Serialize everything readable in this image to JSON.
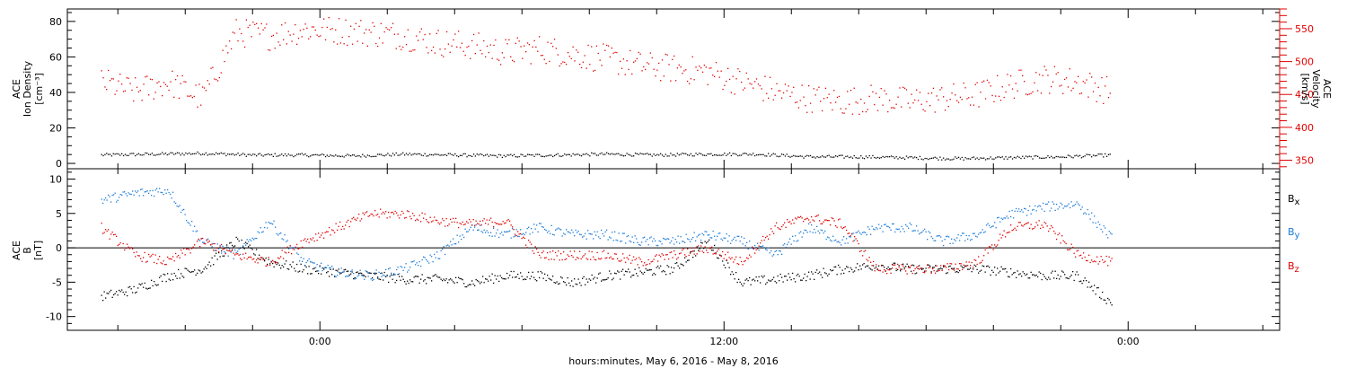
{
  "chart_data": [
    {
      "type": "scatter",
      "panel": "top",
      "left_axis": {
        "label_lines": [
          "ACE",
          "Ion Density",
          "[cm⁻³]"
        ],
        "range": [
          -3,
          87
        ],
        "ticks": [
          0,
          20,
          40,
          60,
          80
        ]
      },
      "right_axis": {
        "label_lines": [
          "ACE",
          "Velocity",
          "[km/s]"
        ],
        "range": [
          337,
          580
        ],
        "ticks": [
          350,
          400,
          450,
          500,
          550
        ],
        "color": "#e00000"
      },
      "series": [
        {
          "axis": "left",
          "color": "#000000",
          "x_hours": [
            -8.5,
            -7,
            -5.5,
            -4,
            -2.5,
            -1,
            0.5,
            2,
            3.5,
            5,
            6.5,
            8,
            9.5,
            11,
            12.5,
            14,
            15.5,
            17,
            18.5,
            20,
            21.5
          ],
          "y": [
            5,
            5.5,
            6,
            5,
            5,
            4.5,
            5.5,
            5,
            4.5,
            5,
            5.5,
            5,
            5.5,
            5.5,
            4,
            4,
            3.5,
            3,
            3.5,
            4,
            5
          ]
        },
        {
          "axis": "right",
          "color": "#e00000",
          "x_hours": [
            -8.5,
            -7.5,
            -6.5,
            -5.5,
            -4.5,
            -3.5,
            -2.5,
            -1.5,
            -0.5,
            0.5,
            1.5,
            2.5,
            3.5,
            4.5,
            5.5,
            6.5,
            7.5,
            8.5,
            9.5,
            10.5,
            11.5,
            12.5,
            13.5,
            14.5,
            15.5,
            16.5,
            17.5,
            18.5,
            19.5,
            20.5,
            21.5
          ],
          "y": [
            470,
            455,
            470,
            445,
            545,
            540,
            550,
            548,
            545,
            540,
            530,
            525,
            515,
            520,
            512,
            505,
            495,
            490,
            485,
            470,
            455,
            445,
            440,
            445,
            440,
            445,
            450,
            465,
            475,
            470,
            455
          ]
        }
      ]
    },
    {
      "type": "scatter",
      "panel": "bottom",
      "left_axis": {
        "label_lines": [
          "ACE",
          "B",
          "[nT]"
        ],
        "range": [
          -12,
          11.5
        ],
        "ticks": [
          -10,
          -5,
          0,
          5,
          10
        ]
      },
      "zero_line": 0,
      "series": [
        {
          "name": "Bx",
          "color": "#000000",
          "x_hours": [
            -8.5,
            -7.5,
            -6.5,
            -5.5,
            -4.5,
            -3.5,
            -2.5,
            -1.5,
            -0.5,
            0.5,
            1.5,
            2.5,
            3.5,
            4.5,
            5.5,
            6.5,
            7.5,
            8.5,
            9.5,
            10.5,
            11.5,
            12.5,
            13.5,
            14.5,
            15.5,
            16.5,
            17.5,
            18.5,
            19.5,
            20.5,
            21.5
          ],
          "y": [
            -7,
            -6,
            -4,
            -3,
            1,
            -2,
            -3,
            -3.5,
            -4,
            -4.5,
            -4.5,
            -5,
            -4,
            -4,
            -5,
            -4,
            -3.5,
            -3,
            1,
            -5,
            -4.5,
            -4,
            -3,
            -2.5,
            -3,
            -3,
            -3,
            -3.5,
            -4,
            -4,
            -8
          ]
        },
        {
          "name": "By",
          "color": "#1a7ad8",
          "x_hours": [
            -8.5,
            -7.5,
            -6.5,
            -5.5,
            -4.5,
            -3.5,
            -2.5,
            -1.5,
            -0.5,
            0.5,
            1.5,
            2.5,
            3.5,
            4.5,
            5.5,
            6.5,
            7.5,
            8.5,
            9.5,
            10.5,
            11.5,
            12.5,
            13.5,
            14.5,
            15.5,
            16.5,
            17.5,
            18.5,
            19.5,
            20.5,
            21.5
          ],
          "y": [
            7,
            8,
            8.5,
            1,
            -1,
            4,
            -2,
            -3.5,
            -4,
            -3,
            -1,
            3,
            2,
            3,
            2,
            2,
            1,
            1,
            2,
            1,
            -1,
            3,
            1,
            3,
            3,
            1,
            2,
            5,
            6,
            6.5,
            1.5
          ]
        },
        {
          "name": "Bz",
          "color": "#e00000",
          "x_hours": [
            -8.5,
            -7.5,
            -6.5,
            -5.5,
            -4.5,
            -3.5,
            -2.5,
            -1.5,
            -0.5,
            0.5,
            1.5,
            2.5,
            3.5,
            4.5,
            5.5,
            6.5,
            7.5,
            8.5,
            9.5,
            10.5,
            11.5,
            12.5,
            13.5,
            14.5,
            15.5,
            16.5,
            17.5,
            18.5,
            19.5,
            20.5,
            21.5
          ],
          "y": [
            3,
            -1,
            -2,
            1,
            -1,
            -2,
            1,
            3,
            5,
            5,
            4,
            3.5,
            4,
            -1,
            -1,
            -1,
            -2,
            -1,
            0,
            -2,
            3,
            4.5,
            3.5,
            -3,
            -3,
            -3,
            -2,
            3,
            3.5,
            -1,
            -2
          ]
        }
      ],
      "legend": [
        {
          "label": "B",
          "sub": "x",
          "color": "#000000"
        },
        {
          "label": "B",
          "sub": "y",
          "color": "#1a7ad8"
        },
        {
          "label": "B",
          "sub": "z",
          "color": "#e00000"
        }
      ]
    }
  ],
  "x_axis": {
    "range_hours": [
      -9.5,
      26.5
    ],
    "tick_labels": [
      {
        "hours": -2,
        "label": "0:00"
      },
      {
        "hours": 10,
        "label": "12:00"
      },
      {
        "hours": 22,
        "label": "0:00"
      }
    ],
    "minor_tick_step_hours": 2,
    "title": "hours:minutes, May  6, 2016 - May  8, 2016"
  }
}
